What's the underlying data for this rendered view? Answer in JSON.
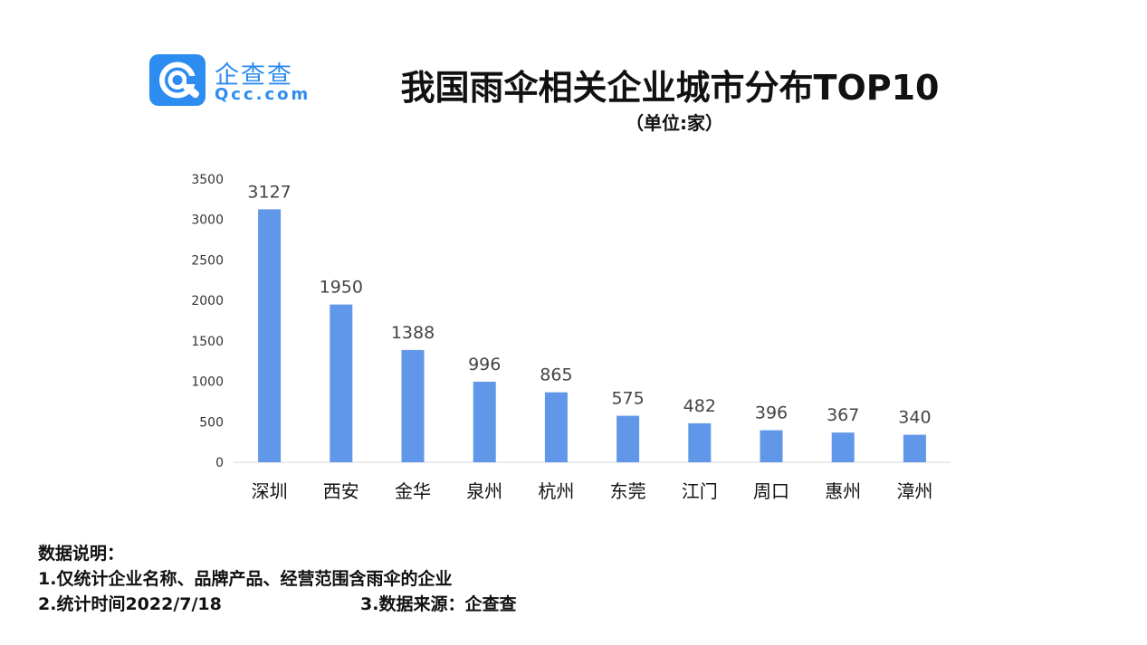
{
  "brand": {
    "name": "企查查",
    "domain": "Qcc.com",
    "color": "#2d8cf0"
  },
  "chart_data": {
    "type": "bar",
    "title": "我国雨伞相关企业城市分布TOP10",
    "subtitle": "（单位:家）",
    "categories": [
      "深圳",
      "西安",
      "金华",
      "泉州",
      "杭州",
      "东莞",
      "江门",
      "周口",
      "惠州",
      "漳州"
    ],
    "values": [
      3127,
      1950,
      1388,
      996,
      865,
      575,
      482,
      396,
      367,
      340
    ],
    "ylim": [
      0,
      3500
    ],
    "yticks": [
      0,
      500,
      1000,
      1500,
      2000,
      2500,
      3000,
      3500
    ],
    "bar_color": "#6197e8",
    "grid": false,
    "legend": "none",
    "xlabel": "",
    "ylabel": ""
  },
  "notes": {
    "heading": "数据说明：",
    "line1": "1.仅统计企业名称、品牌产品、经营范围含雨伞的企业",
    "line2": "2.统计时间2022/7/18",
    "line3": "3.数据来源：企查查"
  }
}
